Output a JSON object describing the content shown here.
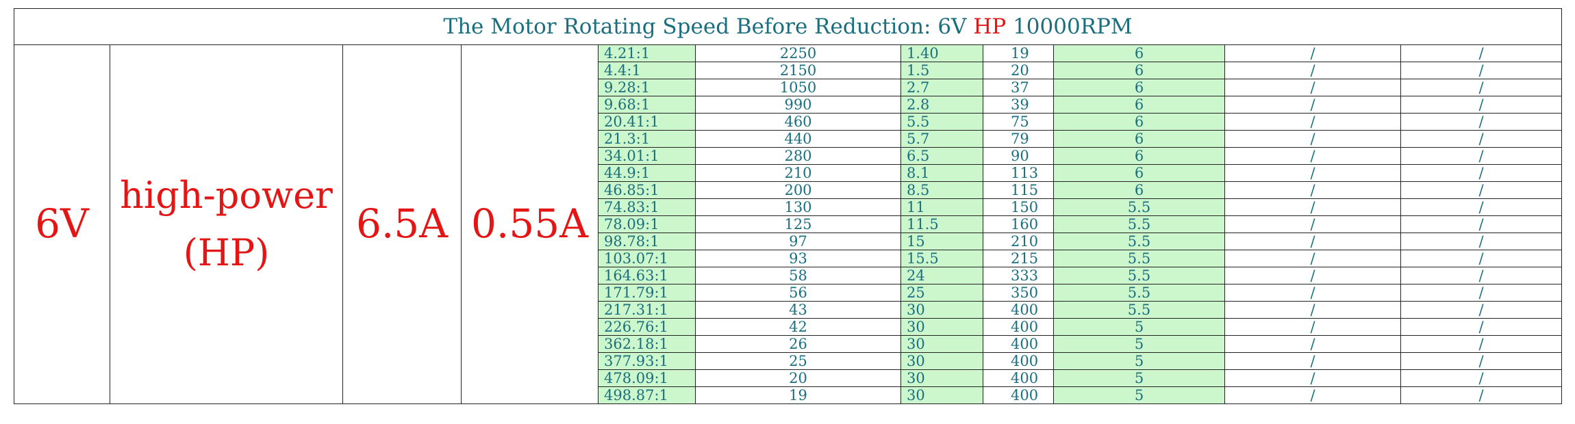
{
  "title": {
    "prefix": "The Motor Rotating Speed Before Reduction: 6V ",
    "highlight": "HP",
    "suffix": " 10000RPM"
  },
  "specs": {
    "voltage": "6V",
    "type_line1": "high-power",
    "type_line2": "(HP)",
    "stall_current": "6.5A",
    "no_load_current": "0.55A"
  },
  "colors": {
    "title_text": "#1a6e7e",
    "highlight_red": "#e31515",
    "cell_green": "#ccf7cc"
  },
  "rows": [
    {
      "ratio": "4.21:1",
      "speed": "2250",
      "torque": "1.40",
      "kgcm": "19",
      "voltage": "6",
      "c1": "/",
      "c2": "/"
    },
    {
      "ratio": "4.4:1",
      "speed": "2150",
      "torque": "1.5",
      "kgcm": "20",
      "voltage": "6",
      "c1": "/",
      "c2": "/"
    },
    {
      "ratio": "9.28:1",
      "speed": "1050",
      "torque": "2.7",
      "kgcm": "37",
      "voltage": "6",
      "c1": "/",
      "c2": "/"
    },
    {
      "ratio": "9.68:1",
      "speed": "990",
      "torque": "2.8",
      "kgcm": "39",
      "voltage": "6",
      "c1": "/",
      "c2": "/"
    },
    {
      "ratio": "20.41:1",
      "speed": "460",
      "torque": "5.5",
      "kgcm": "75",
      "voltage": "6",
      "c1": "/",
      "c2": "/"
    },
    {
      "ratio": "21.3:1",
      "speed": "440",
      "torque": "5.7",
      "kgcm": "79",
      "voltage": "6",
      "c1": "/",
      "c2": "/"
    },
    {
      "ratio": "34.01:1",
      "speed": "280",
      "torque": "6.5",
      "kgcm": "90",
      "voltage": "6",
      "c1": "/",
      "c2": "/"
    },
    {
      "ratio": "44.9:1",
      "speed": "210",
      "torque": "8.1",
      "kgcm": "113",
      "voltage": "6",
      "c1": "/",
      "c2": "/"
    },
    {
      "ratio": "46.85:1",
      "speed": "200",
      "torque": "8.5",
      "kgcm": "115",
      "voltage": "6",
      "c1": "/",
      "c2": "/"
    },
    {
      "ratio": "74.83:1",
      "speed": "130",
      "torque": "11",
      "kgcm": "150",
      "voltage": "5.5",
      "c1": "/",
      "c2": "/"
    },
    {
      "ratio": "78.09:1",
      "speed": "125",
      "torque": "11.5",
      "kgcm": "160",
      "voltage": "5.5",
      "c1": "/",
      "c2": "/"
    },
    {
      "ratio": "98.78:1",
      "speed": "97",
      "torque": "15",
      "kgcm": "210",
      "voltage": "5.5",
      "c1": "/",
      "c2": "/"
    },
    {
      "ratio": "103.07:1",
      "speed": "93",
      "torque": "15.5",
      "kgcm": "215",
      "voltage": "5.5",
      "c1": "/",
      "c2": "/"
    },
    {
      "ratio": "164.63:1",
      "speed": "58",
      "torque": "24",
      "kgcm": "333",
      "voltage": "5.5",
      "c1": "/",
      "c2": "/"
    },
    {
      "ratio": "171.79:1",
      "speed": "56",
      "torque": "25",
      "kgcm": "350",
      "voltage": "5.5",
      "c1": "/",
      "c2": "/"
    },
    {
      "ratio": "217.31:1",
      "speed": "43",
      "torque": "30",
      "kgcm": "400",
      "voltage": "5.5",
      "c1": "/",
      "c2": "/"
    },
    {
      "ratio": "226.76:1",
      "speed": "42",
      "torque": "30",
      "kgcm": "400",
      "voltage": "5",
      "c1": "/",
      "c2": "/"
    },
    {
      "ratio": "362.18:1",
      "speed": "26",
      "torque": "30",
      "kgcm": "400",
      "voltage": "5",
      "c1": "/",
      "c2": "/"
    },
    {
      "ratio": "377.93:1",
      "speed": "25",
      "torque": "30",
      "kgcm": "400",
      "voltage": "5",
      "c1": "/",
      "c2": "/"
    },
    {
      "ratio": "478.09:1",
      "speed": "20",
      "torque": "30",
      "kgcm": "400",
      "voltage": "5",
      "c1": "/",
      "c2": "/"
    },
    {
      "ratio": "498.87:1",
      "speed": "19",
      "torque": "30",
      "kgcm": "400",
      "voltage": "5",
      "c1": "/",
      "c2": "/"
    }
  ]
}
